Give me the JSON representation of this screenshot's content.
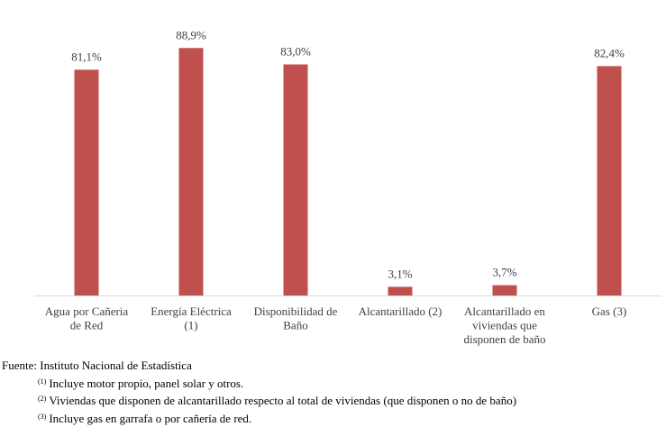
{
  "chart_data": {
    "type": "bar",
    "categories": [
      [
        "Agua por Cañeria",
        "de Red"
      ],
      [
        "Energía Eléctrica",
        "(1)"
      ],
      [
        "Disponibilidad de",
        "Baño"
      ],
      [
        "Alcantarillado (2)"
      ],
      [
        "Alcantarillado en",
        "viviendas que",
        "disponen de baño"
      ],
      [
        "Gas (3)"
      ]
    ],
    "values": [
      81.1,
      88.9,
      83.0,
      3.1,
      3.7,
      82.4
    ],
    "value_labels": [
      "81,1%",
      "88,9%",
      "83,0%",
      "3,1%",
      "3,7%",
      "82,4%"
    ],
    "ylim": [
      0,
      100
    ],
    "grid": false,
    "legend": "none",
    "colors": {
      "bar": "#C0504D",
      "axis": "#D9D9D9",
      "label_text": "#404040"
    }
  },
  "source": {
    "label": "Fuente: Instituto Nacional de Estadística",
    "notes": [
      {
        "marker": "(1)",
        "text": "Incluye motor propio, panel solar y otros."
      },
      {
        "marker": "(2)",
        "text": "Viviendas que disponen de alcantarillado respecto al total de viviendas (que disponen o no de baño)"
      },
      {
        "marker": "(3)",
        "text": "Incluye gas en garrafa o por cañería de red."
      }
    ]
  }
}
